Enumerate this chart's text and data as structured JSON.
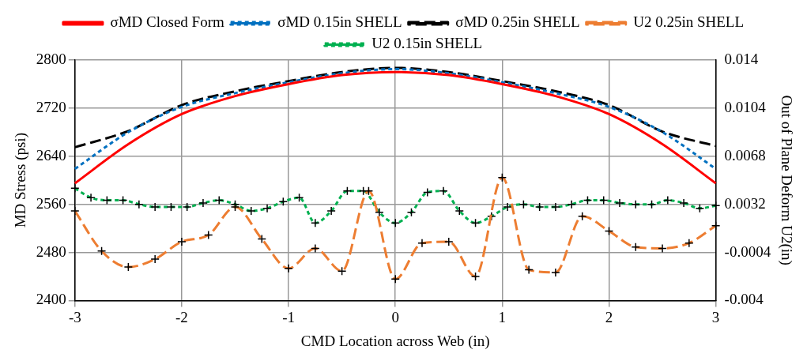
{
  "chart_data": {
    "type": "line",
    "xlabel": "CMD Location across Web (in)",
    "ylabel": "MD Stress (psi)",
    "y2label": "Out of Plane Deform U2(in)",
    "xlim": [
      -3,
      3
    ],
    "xticks": [
      -3,
      -2,
      -1,
      0,
      1,
      2,
      3
    ],
    "ylim": [
      2400,
      2800
    ],
    "yticks": [
      2400,
      2480,
      2560,
      2640,
      2720,
      2800
    ],
    "y2lim": [
      -0.004,
      0.014
    ],
    "y2ticks": [
      -0.004,
      -0.0004,
      0.0032,
      0.0068,
      0.0104,
      0.014
    ],
    "grid": true,
    "legend": "top",
    "series": [
      {
        "name": "σMD Closed Form",
        "color": "#ff0000",
        "line_style": "solid",
        "marker": "none",
        "x": [
          -3,
          -2.5,
          -2,
          -1.5,
          -1,
          -0.5,
          0,
          0.5,
          1,
          1.5,
          2,
          2.5,
          3
        ],
        "values": [
          2595,
          2660,
          2710,
          2740,
          2760,
          2775,
          2780,
          2775,
          2760,
          2740,
          2710,
          2660,
          2595
        ]
      },
      {
        "name": "σMD 0.15in SHELL",
        "color": "#0070c0",
        "line_style": "dotted",
        "marker": "none",
        "x": [
          -3,
          -2.5,
          -2,
          -1.5,
          -1,
          -0.5,
          0,
          0.5,
          1,
          1.5,
          2,
          2.5,
          3
        ],
        "values": [
          2619,
          2680,
          2722,
          2745,
          2763,
          2778,
          2785,
          2778,
          2763,
          2745,
          2722,
          2680,
          2619
        ]
      },
      {
        "name": "σMD 0.25in SHELL",
        "color": "#000000",
        "line_style": "dashed",
        "marker": "none",
        "x": [
          -3,
          -2.5,
          -2,
          -1.5,
          -1,
          -0.5,
          0,
          0.5,
          1,
          1.5,
          2,
          2.5,
          3
        ],
        "values": [
          2655,
          2682,
          2725,
          2748,
          2765,
          2780,
          2787,
          2780,
          2765,
          2748,
          2725,
          2681,
          2657
        ]
      },
      {
        "name": "U2 0.25in SHELL",
        "color": "#ed7d31",
        "line_style": "dashed",
        "marker": "cross",
        "axis": "y2",
        "x": [
          -3,
          -2.75,
          -2.5,
          -2.25,
          -2,
          -1.75,
          -1.5,
          -1.25,
          -1,
          -0.75,
          -0.5,
          -0.25,
          0,
          0.25,
          0.5,
          0.75,
          1,
          1.25,
          1.5,
          1.75,
          2,
          2.25,
          2.5,
          2.75,
          3
        ],
        "values": [
          0.0027,
          -0.0003,
          -0.0015,
          -0.0009,
          0.0004,
          0.0009,
          0.003,
          0.0006,
          -0.0016,
          -0.0001,
          -0.0018,
          0.0042,
          -0.0024,
          0.0003,
          0.0004,
          -0.0022,
          0.0052,
          -0.0017,
          -0.0019,
          0.0023,
          0.0012,
          0,
          -0.0001,
          0.0003,
          0.0016
        ]
      },
      {
        "name": "U2 0.15in SHELL",
        "color": "#00b050",
        "line_style": "dotted",
        "marker": "cross",
        "axis": "y2",
        "x": [
          -3,
          -2.85,
          -2.7,
          -2.55,
          -2.4,
          -2.25,
          -2.1,
          -1.95,
          -1.8,
          -1.65,
          -1.5,
          -1.35,
          -1.2,
          -1.05,
          -0.9,
          -0.75,
          -0.6,
          -0.45,
          -0.3,
          -0.15,
          0,
          0.15,
          0.3,
          0.45,
          0.6,
          0.75,
          0.9,
          1.05,
          1.2,
          1.35,
          1.5,
          1.65,
          1.8,
          1.95,
          2.1,
          2.25,
          2.4,
          2.55,
          2.7,
          2.85,
          3
        ],
        "values": [
          0.0044,
          0.0037,
          0.0035,
          0.0035,
          0.0032,
          0.003,
          0.003,
          0.003,
          0.0033,
          0.0035,
          0.0032,
          0.0027,
          0.0029,
          0.0034,
          0.0037,
          0.0018,
          0.0027,
          0.0042,
          0.0042,
          0.0026,
          0.0018,
          0.0026,
          0.0041,
          0.0042,
          0.0027,
          0.0018,
          0.0023,
          0.003,
          0.0032,
          0.003,
          0.003,
          0.0032,
          0.0035,
          0.0035,
          0.0033,
          0.0032,
          0.0032,
          0.0035,
          0.0033,
          0.0029,
          0.0031
        ]
      }
    ]
  }
}
